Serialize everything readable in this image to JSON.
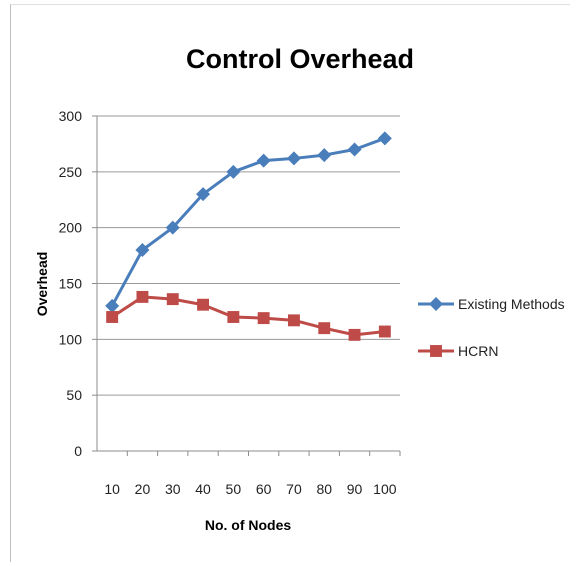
{
  "chart_data": {
    "type": "line",
    "title": "Control Overhead",
    "xlabel": "No. of Nodes",
    "ylabel": "Overhead",
    "categories": [
      "10",
      "20",
      "30",
      "40",
      "50",
      "60",
      "70",
      "80",
      "90",
      "100"
    ],
    "yticks": [
      "0",
      "50",
      "100",
      "150",
      "200",
      "250",
      "300"
    ],
    "ylim": [
      0,
      300
    ],
    "grid": "horizontal",
    "legend_position": "right",
    "series": [
      {
        "name": "Existing Methods",
        "color": "#4a7ebb",
        "marker": "diamond",
        "values": [
          130,
          180,
          200,
          230,
          250,
          260,
          262,
          265,
          270,
          280
        ]
      },
      {
        "name": "HCRN",
        "color": "#be4b48",
        "marker": "square",
        "values": [
          120,
          138,
          136,
          131,
          120,
          119,
          117,
          110,
          104,
          107
        ]
      }
    ]
  }
}
